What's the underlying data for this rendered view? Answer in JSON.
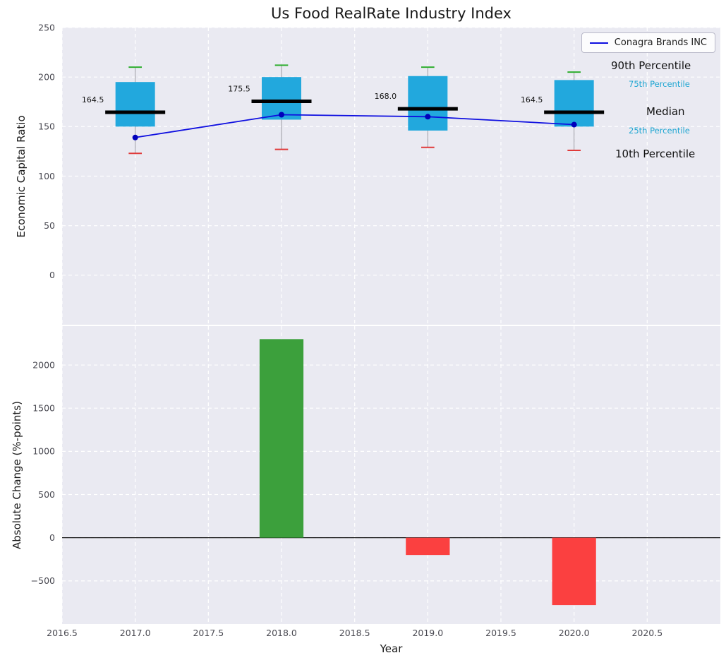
{
  "title": "Us Food RealRate Industry Index",
  "legend": {
    "series_label": "Conagra Brands INC"
  },
  "annotations": {
    "p90": "90th Percentile",
    "p75": "75th Percentile",
    "median": "Median",
    "p25": "25th Percentile",
    "p10": "10th Percentile"
  },
  "colors": {
    "box_fill": "#22a8dd",
    "median": "#000000",
    "p90_cap": "#2fae2f",
    "p10_cap": "#e03a3a",
    "line": "#0f0fe0",
    "marker": "#0000bb",
    "bar_positive": "#3ca03c",
    "bar_negative": "#fb4040",
    "panel_bg": "#eaeaf2",
    "grid": "#ffffff",
    "percentile_label_accent": "#1fa6d2"
  },
  "xaxis": {
    "label": "Year",
    "xlim": [
      2016.5,
      2021.0
    ],
    "ticks": [
      {
        "value": 2016.5,
        "label": "2016.5"
      },
      {
        "value": 2017.0,
        "label": "2017.0"
      },
      {
        "value": 2017.5,
        "label": "2017.5"
      },
      {
        "value": 2018.0,
        "label": "2018.0"
      },
      {
        "value": 2018.5,
        "label": "2018.5"
      },
      {
        "value": 2019.0,
        "label": "2019.0"
      },
      {
        "value": 2019.5,
        "label": "2019.5"
      },
      {
        "value": 2020.0,
        "label": "2020.0"
      },
      {
        "value": 2020.5,
        "label": "2020.5"
      }
    ]
  },
  "chart_data": [
    {
      "type": "boxplot",
      "title": "Us Food RealRate Industry Index",
      "ylabel": "Economic Capital Ratio",
      "ylim": [
        -50,
        250
      ],
      "yticks": [
        {
          "value": 0,
          "label": "0"
        },
        {
          "value": 50,
          "label": "50"
        },
        {
          "value": 100,
          "label": "100"
        },
        {
          "value": 150,
          "label": "150"
        },
        {
          "value": 200,
          "label": "200"
        },
        {
          "value": 250,
          "label": "250"
        }
      ],
      "boxes": [
        {
          "year": 2017,
          "p10": 123,
          "p25": 150,
          "median": 164.5,
          "p75": 195,
          "p90": 210,
          "label": "164.5"
        },
        {
          "year": 2018,
          "p10": 127,
          "p25": 157,
          "median": 175.5,
          "p75": 200,
          "p90": 212,
          "label": "175.5"
        },
        {
          "year": 2019,
          "p10": 129,
          "p25": 146,
          "median": 168.0,
          "p75": 201,
          "p90": 210,
          "label": "168.0"
        },
        {
          "year": 2020,
          "p10": 126,
          "p25": 150,
          "median": 164.5,
          "p75": 197,
          "p90": 205,
          "label": "164.5"
        }
      ],
      "series": [
        {
          "name": "Conagra Brands INC",
          "x": [
            2017,
            2018,
            2019,
            2020
          ],
          "values": [
            139,
            162,
            160,
            152
          ]
        }
      ]
    },
    {
      "type": "bar",
      "ylabel": "Absolute Change (%-points)",
      "xlabel": "Year",
      "ylim": [
        -1000,
        2450
      ],
      "yticks": [
        {
          "value": -500,
          "label": "−500"
        },
        {
          "value": 0,
          "label": "0"
        },
        {
          "value": 500,
          "label": "500"
        },
        {
          "value": 1000,
          "label": "1000"
        },
        {
          "value": 1500,
          "label": "1500"
        },
        {
          "value": 2000,
          "label": "2000"
        }
      ],
      "bars": [
        {
          "x": 2018,
          "value": 2300
        },
        {
          "x": 2019,
          "value": -200
        },
        {
          "x": 2020,
          "value": -780
        }
      ]
    }
  ]
}
